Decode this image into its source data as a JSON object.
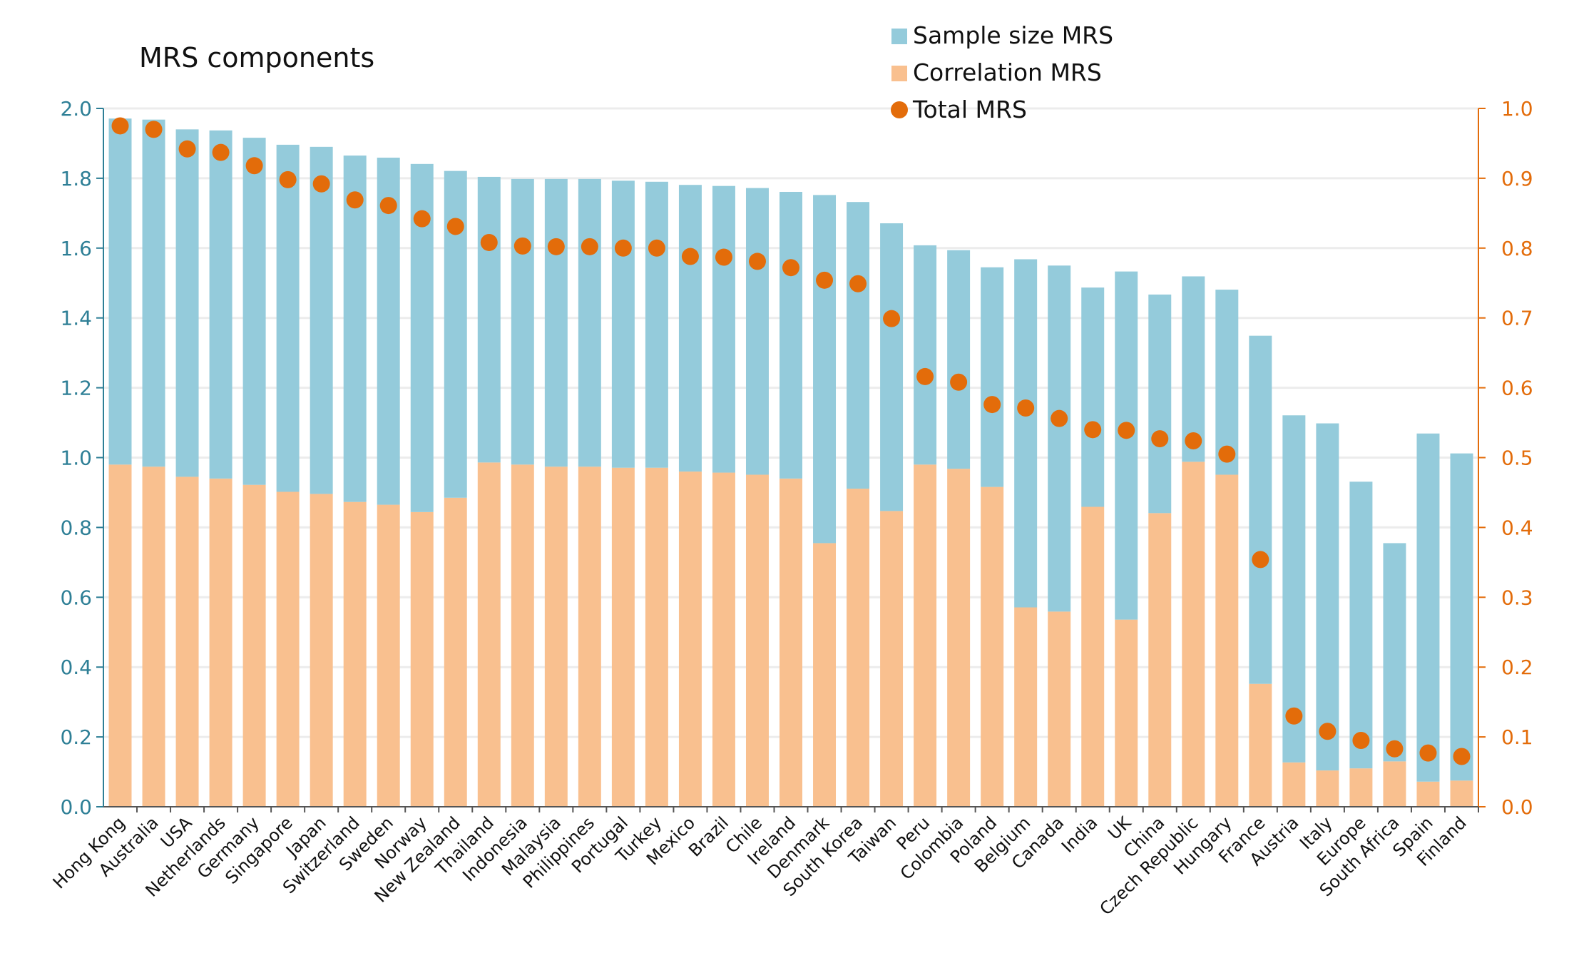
{
  "chart_data": {
    "type": "bar",
    "title": "MRS components",
    "stacked": true,
    "legend_position": "top-center",
    "categories": [
      "Hong Kong",
      "Australia",
      "USA",
      "Netherlands",
      "Germany",
      "Singapore",
      "Japan",
      "Switzerland",
      "Sweden",
      "Norway",
      "New Zealand",
      "Thailand",
      "Indonesia",
      "Malaysia",
      "Philippines",
      "Portugal",
      "Turkey",
      "Mexico",
      "Brazil",
      "Chile",
      "Ireland",
      "Denmark",
      "South Korea",
      "Taiwan",
      "Peru",
      "Colombia",
      "Poland",
      "Belgium",
      "Canada",
      "India",
      "UK",
      "China",
      "Czech Republic",
      "Hungary",
      "France",
      "Austria",
      "Italy",
      "Europe",
      "South Africa",
      "Spain",
      "Finland"
    ],
    "series": [
      {
        "name": "Correlation MRS",
        "axis": "left",
        "kind": "bar",
        "color": "#f9c08f",
        "values": [
          0.98,
          0.974,
          0.945,
          0.94,
          0.922,
          0.902,
          0.896,
          0.873,
          0.865,
          0.844,
          0.885,
          0.986,
          0.98,
          0.974,
          0.974,
          0.971,
          0.971,
          0.96,
          0.957,
          0.951,
          0.94,
          0.755,
          0.911,
          0.847,
          0.98,
          0.968,
          0.916,
          0.571,
          0.559,
          0.859,
          0.536,
          0.841,
          0.988,
          0.951,
          0.352,
          0.127,
          0.104,
          0.11,
          0.13,
          0.072,
          0.075
        ]
      },
      {
        "name": "Sample size MRS",
        "axis": "left",
        "kind": "bar",
        "color": "#94cbdb",
        "values": [
          0.991,
          0.994,
          0.995,
          0.997,
          0.994,
          0.994,
          0.994,
          0.992,
          0.994,
          0.997,
          0.936,
          0.818,
          0.818,
          0.824,
          0.824,
          0.822,
          0.819,
          0.821,
          0.821,
          0.821,
          0.821,
          0.997,
          0.821,
          0.824,
          0.628,
          0.626,
          0.629,
          0.997,
          0.991,
          0.628,
          0.997,
          0.626,
          0.531,
          0.53,
          0.997,
          0.994,
          0.994,
          0.821,
          0.625,
          0.997,
          0.937
        ]
      },
      {
        "name": "Total MRS",
        "axis": "right",
        "kind": "scatter",
        "color": "#e36c0a",
        "values": [
          0.975,
          0.97,
          0.942,
          0.937,
          0.918,
          0.898,
          0.892,
          0.869,
          0.861,
          0.842,
          0.831,
          0.808,
          0.803,
          0.802,
          0.802,
          0.8,
          0.8,
          0.788,
          0.787,
          0.781,
          0.772,
          0.754,
          0.749,
          0.699,
          0.616,
          0.608,
          0.576,
          0.571,
          0.556,
          0.54,
          0.539,
          0.527,
          0.524,
          0.505,
          0.354,
          0.13,
          0.108,
          0.095,
          0.083,
          0.077,
          0.072
        ]
      }
    ],
    "y_left": {
      "range": [
        0,
        2.0
      ],
      "ticks": [
        "0.0",
        "0.2",
        "0.4",
        "0.6",
        "0.8",
        "1.0",
        "1.2",
        "1.4",
        "1.6",
        "1.8",
        "2.0"
      ],
      "color": "#2e7f96"
    },
    "y_right": {
      "range": [
        0,
        1.0
      ],
      "ticks": [
        "0.0",
        "0.1",
        "0.2",
        "0.3",
        "0.4",
        "0.5",
        "0.6",
        "0.7",
        "0.8",
        "0.9",
        "1.0"
      ],
      "color": "#e36c0a"
    },
    "grid": true,
    "xlabel": "",
    "ylabel": ""
  }
}
